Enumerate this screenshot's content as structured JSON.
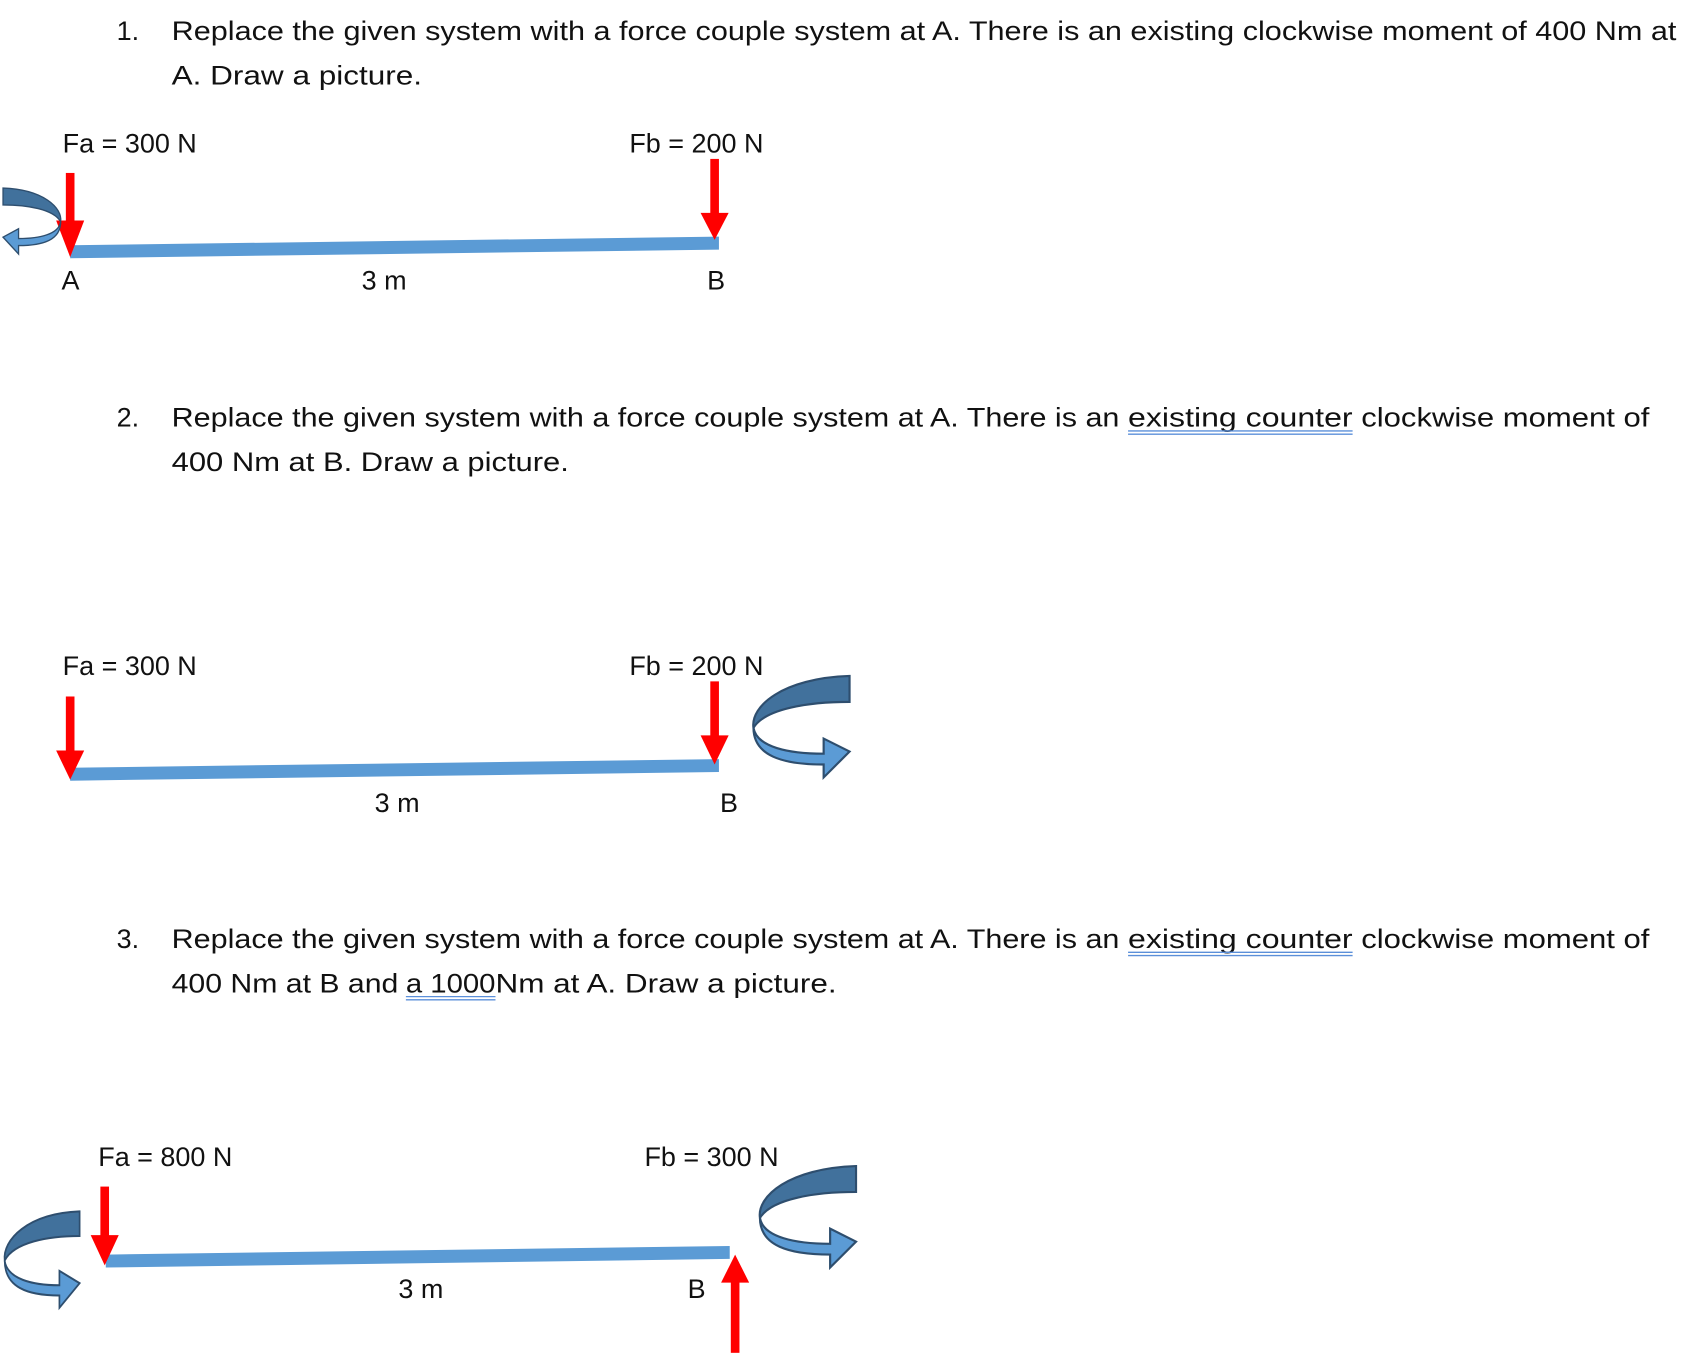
{
  "problems": [
    {
      "number": "1.",
      "line1": "Replace the given system with a force couple system at A.  There is an existing clockwise moment of 400 Nm at",
      "line2": "A.  Draw a picture.",
      "diagram": {
        "fa": "Fa = 300 N",
        "fb": "Fb = 200 N",
        "point_a": "A",
        "length": "3 m",
        "point_b": "B"
      }
    },
    {
      "number": "2.",
      "line1a": "Replace the given system with a force couple system at A.  There is an",
      "line1b": "existing  counter",
      "line1c": "clockwise moment of",
      "line2": "400 Nm at B.  Draw a picture.",
      "diagram": {
        "fa": "Fa = 300 N",
        "fb": "Fb = 200 N",
        "length": "3 m",
        "point_b": "B"
      }
    },
    {
      "number": "3.",
      "line1a": "Replace the given system with a force couple system at A.  There is an",
      "line1b": "existing  counter",
      "line1c": "clockwise moment of",
      "line2a": "400 Nm at B and",
      "line2b": "a 1000",
      "line2c": "Nm at A.  Draw a picture.",
      "diagram": {
        "fa": "Fa = 800 N",
        "fb": "Fb = 300 N",
        "length": "3 m",
        "point_b": "B"
      }
    }
  ],
  "colors": {
    "beam": "#5b9bd5",
    "force": "#ff0000",
    "moment": "#41719c"
  }
}
